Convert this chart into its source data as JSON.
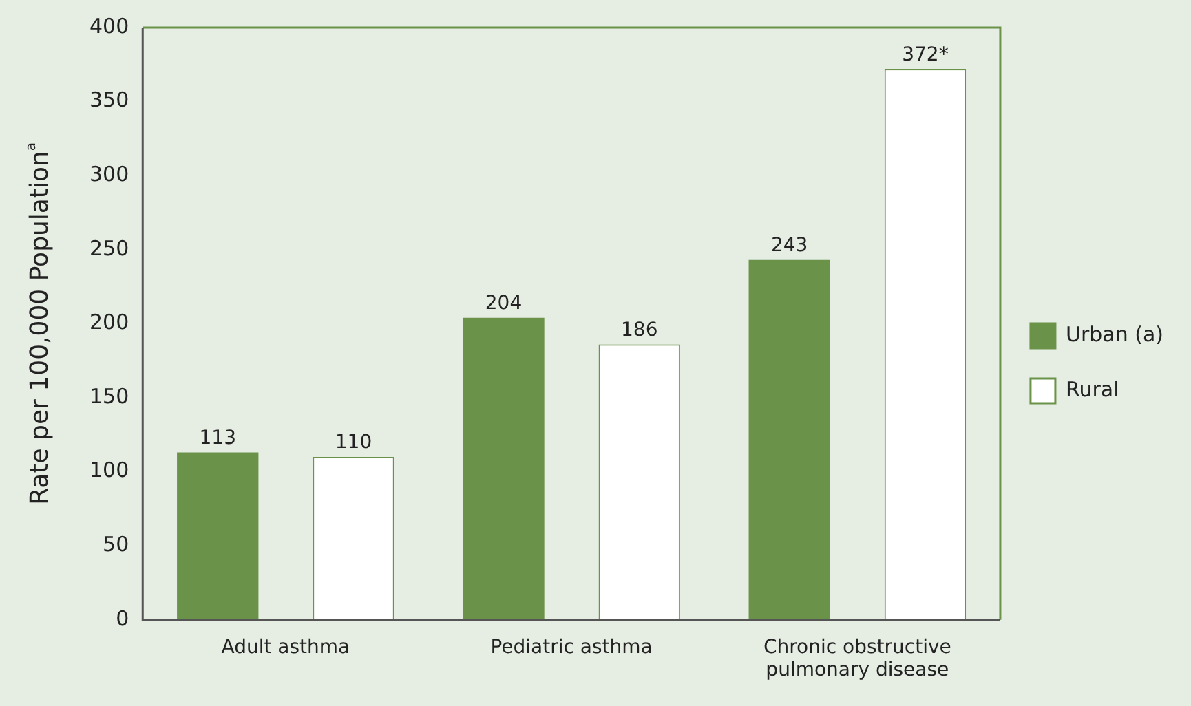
{
  "chart_data": {
    "type": "bar",
    "ylabel": "Rate per 100,000 Population$^{a}$",
    "categories": [
      "Adult asthma",
      "Pediatric asthma",
      "Chronic obstructive pulmonary disease"
    ],
    "series": [
      {
        "name": "Urban (a)",
        "color": "#6a9349",
        "values": [
          113,
          204,
          243
        ],
        "value_labels": [
          "113",
          "204",
          "243"
        ]
      },
      {
        "name": "Rural",
        "color": "#ffffff",
        "values": [
          110,
          186,
          372
        ],
        "value_labels": [
          "110",
          "186",
          "372*"
        ]
      }
    ],
    "ylim": [
      0,
      400
    ],
    "yticks": [
      0,
      50,
      100,
      150,
      200,
      250,
      300,
      350,
      400
    ],
    "grid": false,
    "legend": "right"
  }
}
